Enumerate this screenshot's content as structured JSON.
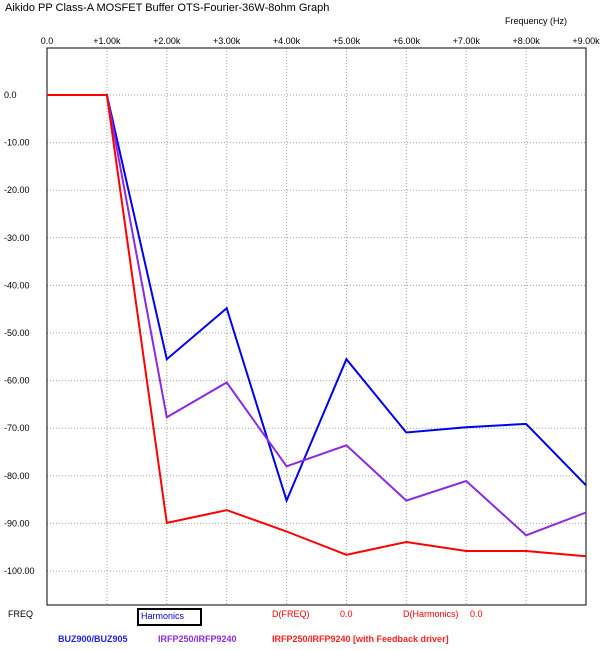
{
  "window": {
    "title": "Aikido PP Class-A MOSFET Buffer OTS-Fourier-36W-8ohm Graph"
  },
  "chart_data": {
    "type": "line",
    "title": "Aikido PP Class-A MOSFET Buffer OTS-Fourier-36W-8ohm Graph",
    "xlabel": "Frequency   (Hz)",
    "ylabel": "",
    "x_tick_labels": [
      "0.0",
      "+1.00k",
      "+2.00k",
      "+3.00k",
      "+4.00k",
      "+5.00k",
      "+6.00k",
      "+7.00k",
      "+8.00k",
      "+9.00k"
    ],
    "y_tick_labels": [
      "0.0",
      "-10.00",
      "-20.00",
      "-30.00",
      "-40.00",
      "-50.00",
      "-60.00",
      "-70.00",
      "-80.00",
      "-90.00",
      "-100.00"
    ],
    "xlim": [
      0,
      9000
    ],
    "ylim": [
      -105,
      10
    ],
    "grid": true,
    "legend_position": "bottom",
    "series": [
      {
        "name": "BUZ900/BUZ905",
        "color": "#0000ee",
        "x": [
          0,
          1000,
          2000,
          3000,
          4000,
          5000,
          6000,
          7000,
          8000,
          9000
        ],
        "y": [
          0,
          0,
          -55.5,
          -44.8,
          -85.2,
          -55.5,
          -70.9,
          -69.8,
          -69.1,
          -82.0
        ]
      },
      {
        "name": "IRFP250/IRFP9240",
        "color": "#8a2be2",
        "x": [
          0,
          1000,
          2000,
          3000,
          4000,
          5000,
          6000,
          7000,
          8000,
          9000
        ],
        "y": [
          0,
          0,
          -67.7,
          -60.4,
          -78.0,
          -73.6,
          -85.2,
          -81.1,
          -92.5,
          -87.7
        ]
      },
      {
        "name": "IRFP250/IRFP9240 [with Feedback driver]",
        "color": "#ff0000",
        "x": [
          0,
          1000,
          2000,
          3000,
          4000,
          5000,
          6000,
          7000,
          8000,
          9000
        ],
        "y": [
          0,
          0,
          -89.9,
          -87.2,
          -91.7,
          -96.6,
          -93.9,
          -95.8,
          -95.8,
          -96.9
        ]
      }
    ]
  },
  "footer": {
    "freq_label": "FREQ",
    "harmonics_label": "Harmonics",
    "dfreq_label": "D(FREQ)",
    "dfreq_value": "0.0",
    "dharmonics_label": "D(Harmonics)",
    "dharmonics_value": "0.0"
  }
}
